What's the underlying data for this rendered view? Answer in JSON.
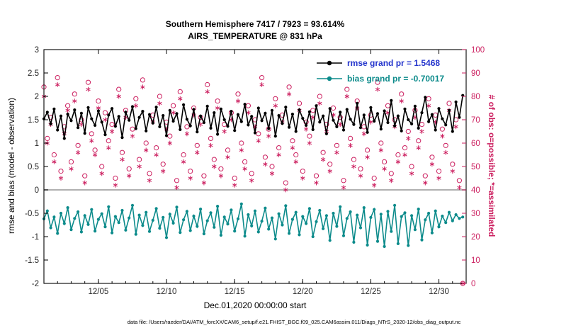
{
  "figure": {
    "title_line1": "Southern Hemisphere 7417 / 7923 = 93.614%",
    "title_line2": "AIRS_TEMPERATURE @ 831 hPa",
    "xlabel": "Dec.01,2020 00:00:00 start",
    "ylabel_left": "rmse and bias (model - observation)",
    "ylabel_right": "# of obs: o=possible; *=assimilated",
    "datafile_caption": "data file: /Users/raeder/DAI/ATM_forcXX/CAM6_setup/f.e21.FHIST_BGC.f09_025.CAM6assim.011/Diags_NTrS_2020-12/obs_diag_output.nc"
  },
  "legend": {
    "rmse_label": "rmse grand pr = 1.5468",
    "bias_label": "bias grand pr = -0.70017"
  },
  "colors": {
    "rmse_line": "#000000",
    "bias_line": "#0c8b8b",
    "obs_scatter": "#cc2060",
    "legend_rmse_text": "#2233cc",
    "legend_bias_text": "#0c8b8b",
    "axis_text": "#262626",
    "zero_line": "#b0b0b0"
  },
  "chart_data": {
    "type": "line",
    "title": "Southern Hemisphere 7417 / 7923 = 93.614% - AIRS_TEMPERATURE @ 831 hPa",
    "grand_rmse": 1.5468,
    "grand_bias": -0.70017,
    "x_axis": {
      "start_label": "Dec.01,2020 00:00:00 start",
      "range_days": 31,
      "step_days": 0.25,
      "major_ticks": [
        {
          "day": 4,
          "label": "12/05"
        },
        {
          "day": 9,
          "label": "12/10"
        },
        {
          "day": 14,
          "label": "12/15"
        },
        {
          "day": 19,
          "label": "12/20"
        },
        {
          "day": 24,
          "label": "12/25"
        },
        {
          "day": 29,
          "label": "12/30"
        }
      ]
    },
    "y_left": {
      "label": "rmse and bias (model - observation)",
      "lim": [
        -2,
        3
      ],
      "ticks": [
        -2,
        -1.5,
        -1,
        -0.5,
        0,
        0.5,
        1,
        1.5,
        2,
        2.5,
        3
      ]
    },
    "y_right": {
      "label": "# of obs: o=possible; *=assimilated",
      "lim": [
        0,
        100
      ],
      "ticks": [
        0,
        10,
        20,
        30,
        40,
        50,
        60,
        70,
        80,
        90,
        100
      ]
    },
    "series": [
      {
        "name": "rmse",
        "axis": "left",
        "values": [
          1.52,
          1.66,
          1.41,
          1.73,
          1.28,
          1.58,
          1.1,
          1.62,
          1.48,
          1.71,
          1.33,
          1.64,
          1.21,
          1.76,
          1.52,
          1.38,
          1.69,
          1.45,
          1.18,
          1.6,
          1.74,
          1.36,
          1.57,
          1.12,
          1.66,
          1.49,
          1.78,
          1.31,
          1.55,
          1.68,
          1.26,
          1.61,
          1.43,
          1.77,
          1.35,
          1.59,
          1.16,
          1.7,
          1.47,
          1.63,
          1.29,
          1.82,
          1.51,
          1.37,
          1.72,
          1.24,
          1.58,
          1.44,
          1.79,
          1.32,
          1.65,
          1.19,
          1.73,
          1.5,
          1.36,
          1.68,
          1.27,
          1.61,
          1.46,
          1.83,
          1.39,
          1.57,
          1.22,
          1.75,
          1.48,
          1.64,
          1.31,
          1.7,
          1.15,
          1.59,
          1.42,
          1.77,
          1.34,
          1.62,
          1.25,
          1.71,
          1.53,
          1.38,
          1.67,
          1.29,
          1.8,
          1.45,
          1.58,
          1.2,
          1.74,
          1.49,
          1.35,
          1.66,
          1.28,
          1.72,
          1.51,
          1.4,
          1.85,
          1.33,
          1.6,
          1.23,
          1.76,
          1.47,
          1.63,
          1.3,
          1.69,
          1.44,
          1.91,
          1.37,
          1.58,
          1.26,
          1.73,
          1.5,
          1.41,
          1.79,
          1.32,
          1.65,
          1.98,
          1.46,
          1.61,
          1.28,
          1.74,
          1.52,
          1.39,
          1.7,
          1.25,
          1.88,
          1.55,
          2.02
        ]
      },
      {
        "name": "bias",
        "axis": "left",
        "values": [
          -0.62,
          -0.45,
          -0.81,
          -0.58,
          -0.93,
          -0.5,
          -0.72,
          -0.38,
          -0.85,
          -0.61,
          -0.47,
          -0.9,
          -0.55,
          -0.74,
          -0.42,
          -0.88,
          -0.63,
          -0.51,
          -0.79,
          -0.36,
          -0.92,
          -0.57,
          -0.7,
          -0.44,
          -0.86,
          -0.6,
          -0.33,
          -0.95,
          -0.54,
          -0.76,
          -0.48,
          -0.89,
          -0.65,
          -0.4,
          -0.82,
          -0.59,
          -1.02,
          -0.52,
          -0.71,
          -0.37,
          -0.91,
          -0.64,
          -0.46,
          -0.87,
          -0.56,
          -0.78,
          -0.41,
          -0.94,
          -0.66,
          -0.49,
          -0.8,
          -0.35,
          -0.97,
          -0.58,
          -0.73,
          -0.43,
          -0.88,
          -0.62,
          -0.3,
          -0.99,
          -0.53,
          -0.77,
          -0.45,
          -0.9,
          -0.67,
          -0.39,
          -0.84,
          -0.6,
          -1.05,
          -0.51,
          -0.75,
          -0.34,
          -0.93,
          -0.63,
          -0.48,
          -0.96,
          -0.57,
          -0.72,
          -0.4,
          -1.0,
          -0.68,
          -0.44,
          -0.83,
          -0.55,
          -1.08,
          -0.5,
          -0.78,
          -0.36,
          -0.98,
          -0.61,
          -0.47,
          -1.12,
          -0.54,
          -0.81,
          -0.38,
          -1.18,
          -0.59,
          -0.42,
          -1.1,
          -0.52,
          -1.21,
          -0.46,
          -0.89,
          -0.33,
          -1.15,
          -0.57,
          -0.49,
          -1.19,
          -0.55,
          -0.85,
          -0.41,
          -1.07,
          -0.64,
          -0.5,
          -0.92,
          -0.45,
          -0.79,
          -0.56,
          -0.7,
          -0.48,
          -0.66,
          -0.53,
          -0.61,
          -0.58
        ]
      }
    ],
    "scatter": [
      {
        "name": "possible_obs",
        "marker": "circle",
        "axis": "right",
        "values": [
          84,
          62,
          71,
          55,
          88,
          48,
          67,
          76,
          52,
          81,
          59,
          70,
          46,
          86,
          64,
          57,
          78,
          50,
          73,
          61,
          68,
          45,
          83,
          56,
          74,
          49,
          66,
          79,
          53,
          87,
          60,
          47,
          72,
          58,
          80,
          51,
          69,
          63,
          76,
          44,
          82,
          55,
          67,
          48,
          75,
          59,
          71,
          46,
          85,
          62,
          53,
          78,
          49,
          68,
          57,
          73,
          45,
          81,
          60,
          52,
          76,
          47,
          70,
          64,
          88,
          54,
          66,
          50,
          79,
          58,
          72,
          43,
          84,
          61,
          55,
          77,
          48,
          69,
          63,
          74,
          46,
          80,
          56,
          68,
          51,
          75,
          59,
          71,
          44,
          83,
          62,
          53,
          78,
          49,
          67,
          57,
          72,
          45,
          86,
          60,
          52,
          76,
          47,
          70,
          55,
          81,
          58,
          65,
          50,
          74,
          61,
          68,
          46,
          79,
          54,
          72,
          48,
          66,
          59,
          77,
          51,
          70,
          44,
          0
        ]
      },
      {
        "name": "assimilated_obs",
        "marker": "asterisk",
        "axis": "right",
        "values": [
          80,
          60,
          68,
          52,
          85,
          45,
          64,
          74,
          49,
          78,
          56,
          68,
          43,
          83,
          61,
          55,
          75,
          47,
          70,
          58,
          65,
          42,
          80,
          53,
          71,
          46,
          63,
          76,
          50,
          84,
          57,
          44,
          69,
          55,
          77,
          48,
          66,
          60,
          73,
          41,
          79,
          52,
          64,
          45,
          72,
          56,
          68,
          43,
          82,
          59,
          50,
          75,
          46,
          65,
          54,
          70,
          42,
          78,
          57,
          49,
          73,
          44,
          67,
          61,
          85,
          51,
          63,
          47,
          76,
          55,
          69,
          40,
          81,
          58,
          52,
          74,
          45,
          66,
          60,
          71,
          43,
          77,
          53,
          65,
          48,
          72,
          56,
          68,
          41,
          80,
          59,
          50,
          75,
          46,
          64,
          54,
          69,
          42,
          83,
          57,
          49,
          73,
          44,
          67,
          52,
          78,
          55,
          62,
          47,
          71,
          58,
          65,
          43,
          76,
          51,
          69,
          45,
          63,
          56,
          74,
          48,
          67,
          41,
          0
        ]
      }
    ]
  }
}
